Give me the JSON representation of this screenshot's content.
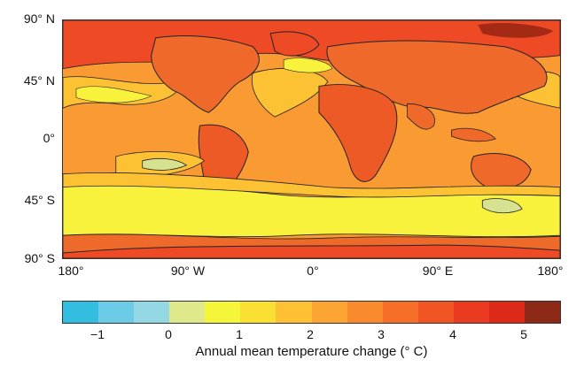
{
  "map": {
    "lat_labels": [
      "90° N",
      "45° N",
      "0°",
      "45° S",
      "90° S"
    ],
    "lon_labels": [
      "180°",
      "90° W",
      "0°",
      "90° E",
      "180°"
    ]
  },
  "colorbar": {
    "title": "Annual mean temperature change (° C)",
    "tick_labels": [
      "−1",
      "0",
      "1",
      "2",
      "3",
      "4",
      "5"
    ],
    "colors": [
      "#33bde0",
      "#6ccbe6",
      "#93d8e2",
      "#dfe88a",
      "#f5f53a",
      "#fbe034",
      "#fdc133",
      "#fca532",
      "#fa8a2e",
      "#f76e29",
      "#f25524",
      "#ea3a1f",
      "#dd2a18",
      "#8c2a17"
    ]
  },
  "fill_colors": {
    "polar": "#ee4a25",
    "continent": "#ef6a2a",
    "tropics": "#fa9a33",
    "mid_ocean": "#fdc234",
    "southern_band": "#f8f23c",
    "coolest": "#d7e290"
  }
}
